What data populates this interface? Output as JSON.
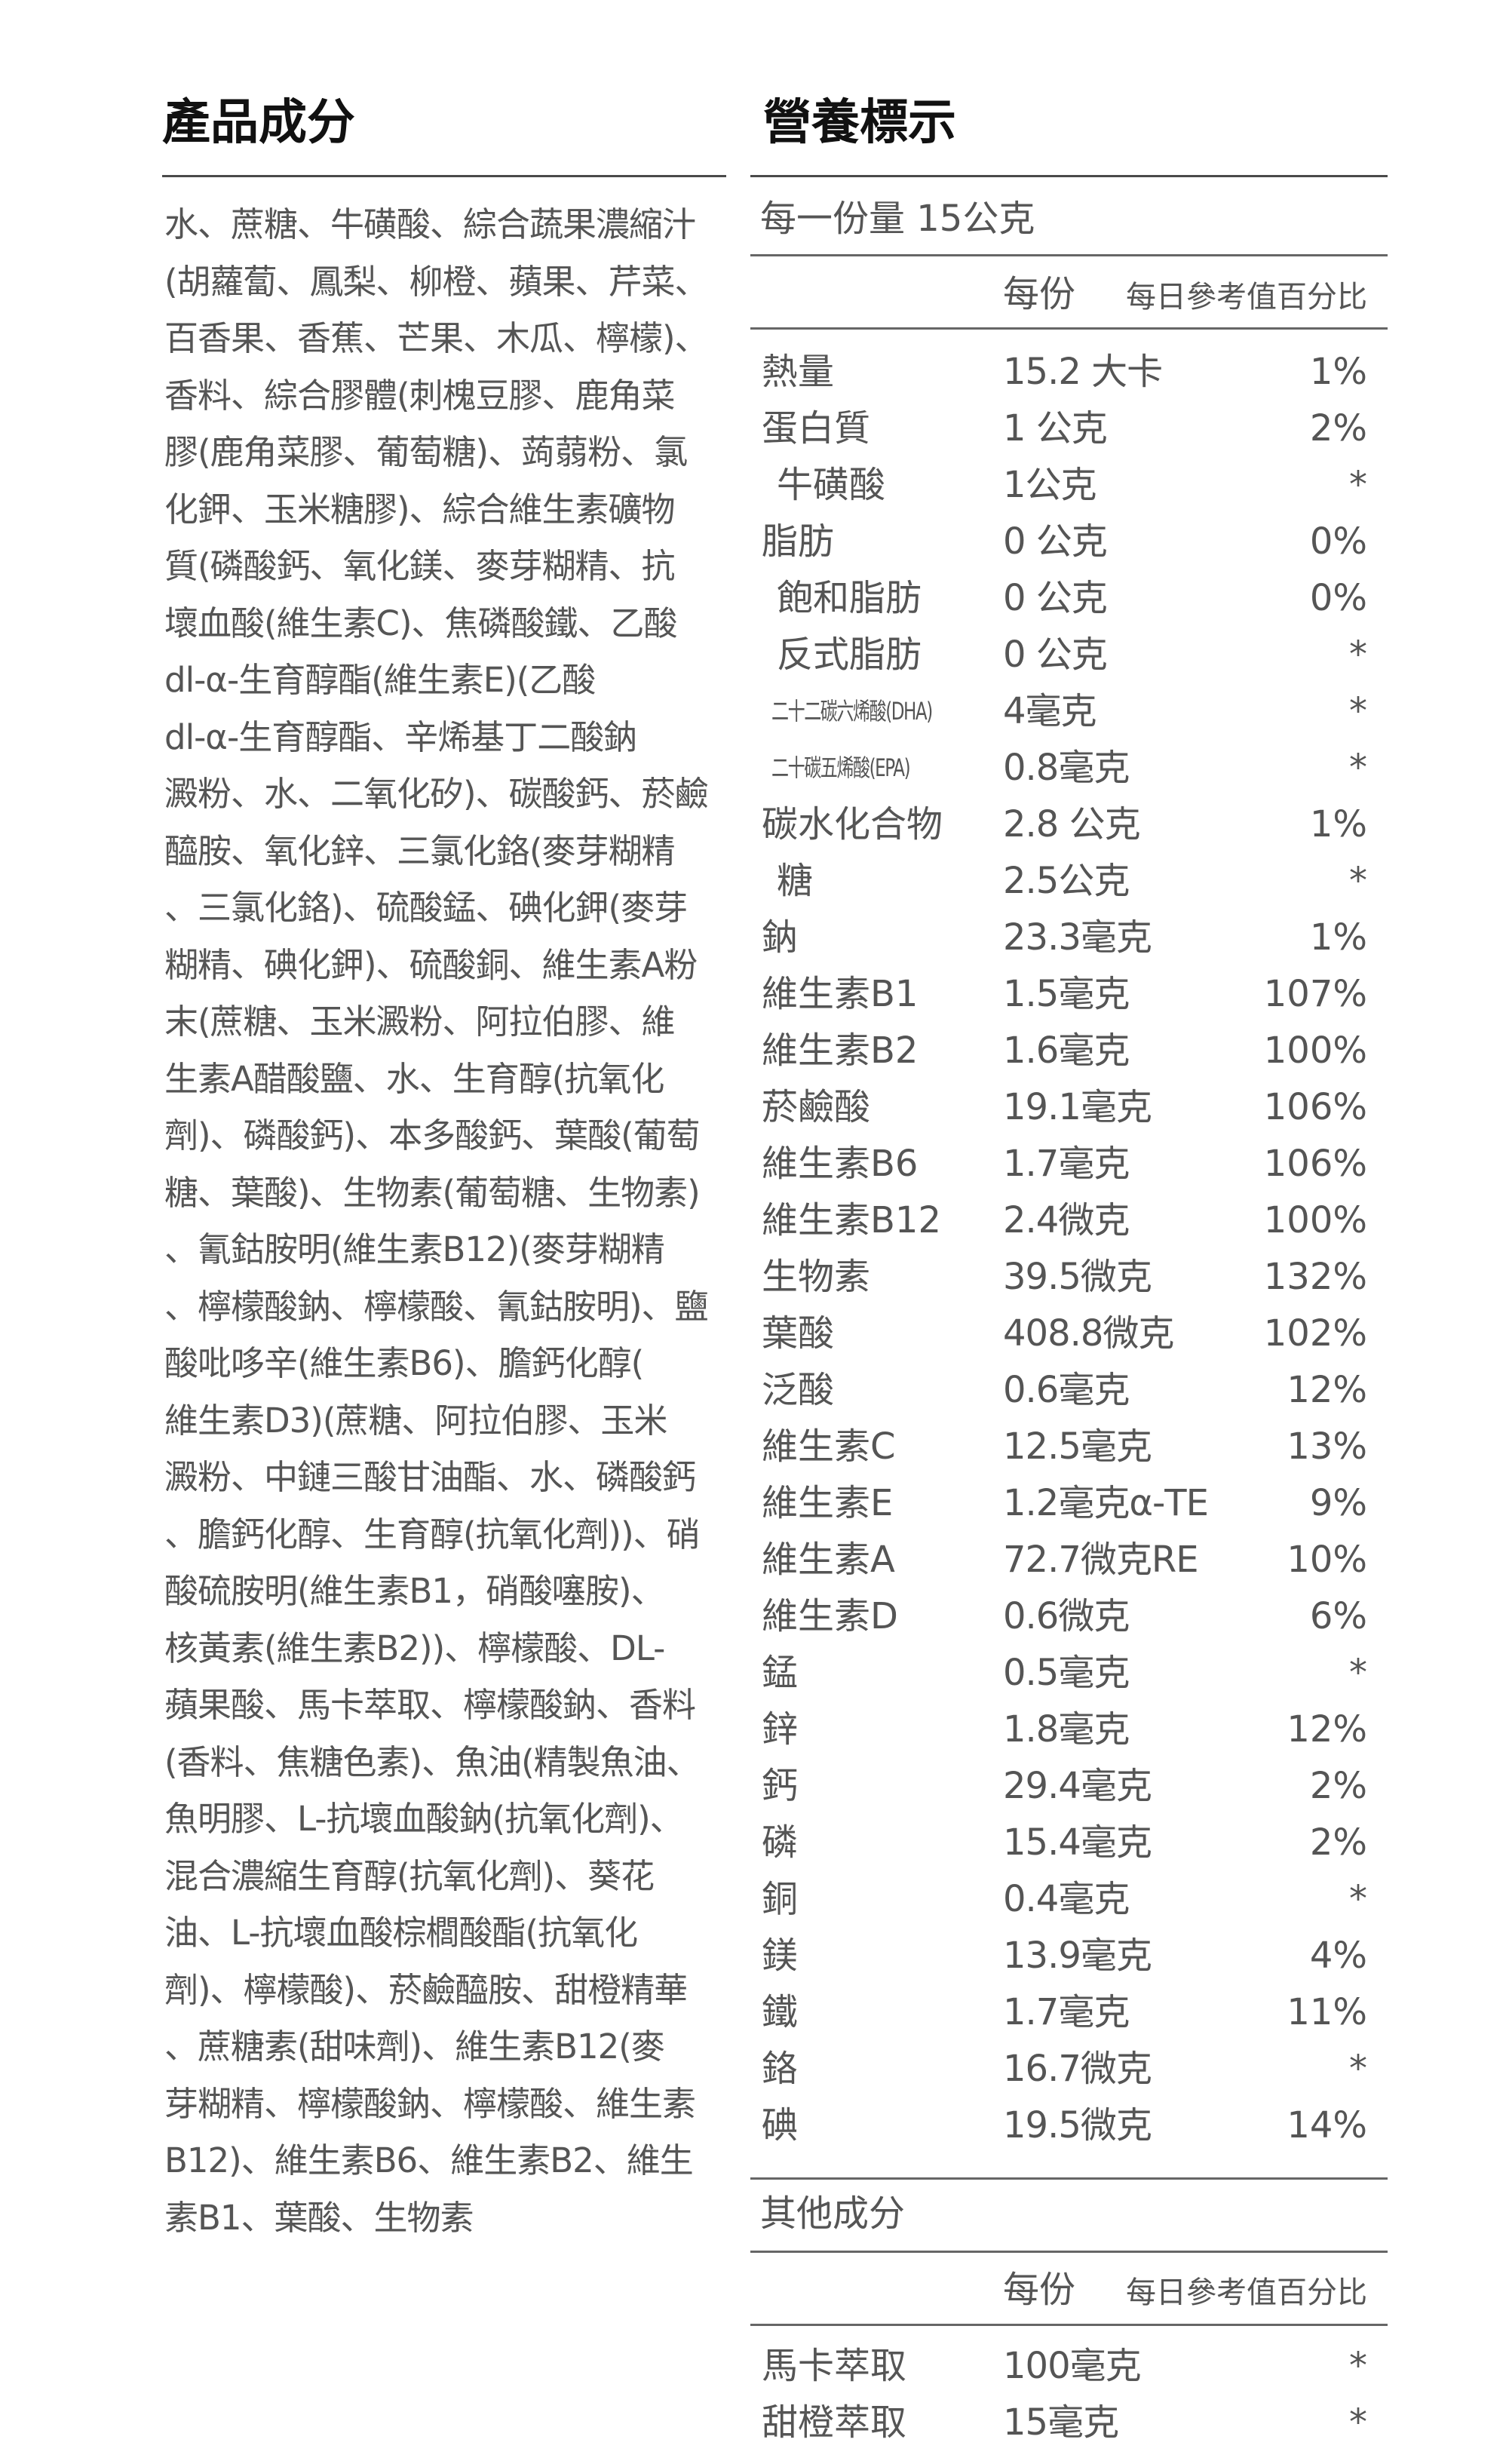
{
  "ingredients": {
    "title": "產品成分",
    "lines": [
      "水、蔗糖、牛磺酸、綜合蔬果濃縮汁",
      "(胡蘿蔔、鳳梨、柳橙、蘋果、芹菜、",
      "百香果、香蕉、芒果、木瓜、檸檬)、",
      "香料、綜合膠體(刺槐豆膠、鹿角菜",
      "膠(鹿角菜膠、葡萄糖)、蒟蒻粉、氯",
      "化鉀、玉米糖膠)、綜合維生素礦物",
      "質(磷酸鈣、氧化鎂、麥芽糊精、抗",
      "壞血酸(維生素C)、焦磷酸鐵、乙酸",
      "dl-α-生育醇酯(維生素E)(乙酸",
      "dl-α-生育醇酯、辛烯基丁二酸鈉",
      "澱粉、水、二氧化矽)、碳酸鈣、菸鹼",
      "醯胺、氧化鋅、三氯化鉻(麥芽糊精",
      "、三氯化鉻)、硫酸錳、碘化鉀(麥芽",
      "糊精、碘化鉀)、硫酸銅、維生素A粉",
      "末(蔗糖、玉米澱粉、阿拉伯膠、維",
      "生素A醋酸鹽、水、生育醇(抗氧化",
      "劑)、磷酸鈣)、本多酸鈣、葉酸(葡萄",
      "糖、葉酸)、生物素(葡萄糖、生物素)",
      "、氰鈷胺明(維生素B12)(麥芽糊精",
      "、檸檬酸鈉、檸檬酸、氰鈷胺明)、鹽",
      "酸吡哆辛(維生素B6)、膽鈣化醇(",
      "維生素D3)(蔗糖、阿拉伯膠、玉米",
      "澱粉、中鏈三酸甘油酯、水、磷酸鈣",
      "、膽鈣化醇、生育醇(抗氧化劑))、硝",
      "酸硫胺明(維生素B1，硝酸噻胺)、",
      "核黃素(維生素B2))、檸檬酸、DL-",
      "蘋果酸、馬卡萃取、檸檬酸鈉、香料",
      "(香料、焦糖色素)、魚油(精製魚油、",
      "魚明膠、L-抗壞血酸鈉(抗氧化劑)、",
      "混合濃縮生育醇(抗氧化劑)、葵花",
      "油、L-抗壞血酸棕櫚酸酯(抗氧化",
      "劑)、檸檬酸)、菸鹼醯胺、甜橙精華",
      "、蔗糖素(甜味劑)、維生素B12(麥",
      "芽糊精、檸檬酸鈉、檸檬酸、維生素",
      "B12)、維生素B6、維生素B2、維生",
      "素B1、葉酸、生物素"
    ]
  },
  "nutrition": {
    "title": "營養標示",
    "serving_size": "每一份量 15公克",
    "col_per_serving": "每份",
    "col_daily_value": "每日參考值百分比",
    "rows": [
      {
        "name": "熱量",
        "value": "15.2 大卡",
        "pct": "1%"
      },
      {
        "name": "蛋白質",
        "value": "1 公克",
        "pct": "2%"
      },
      {
        "name": "牛磺酸",
        "value": "1公克",
        "pct": "*",
        "indent": true
      },
      {
        "name": "脂肪",
        "value": "0 公克",
        "pct": "0%"
      },
      {
        "name": "飽和脂肪",
        "value": "0 公克",
        "pct": "0%",
        "indent": true
      },
      {
        "name": "反式脂肪",
        "value": "0 公克",
        "pct": "*",
        "indent": true
      },
      {
        "name": "二十二碳六烯酸(DHA)",
        "value": "4毫克",
        "pct": "*",
        "small": true
      },
      {
        "name": "二十碳五烯酸(EPA)",
        "value": "0.8毫克",
        "pct": "*",
        "small": true
      },
      {
        "name": "碳水化合物",
        "value": "2.8 公克",
        "pct": "1%"
      },
      {
        "name": "糖",
        "value": "2.5公克",
        "pct": "*",
        "indent": true
      },
      {
        "name": "鈉",
        "value": "23.3毫克",
        "pct": "1%"
      },
      {
        "name": "維生素B1",
        "value": "1.5毫克",
        "pct": "107%"
      },
      {
        "name": "維生素B2",
        "value": "1.6毫克",
        "pct": "100%"
      },
      {
        "name": "菸鹼酸",
        "value": "19.1毫克",
        "pct": "106%"
      },
      {
        "name": "維生素B6",
        "value": "1.7毫克",
        "pct": "106%"
      },
      {
        "name": "維生素B12",
        "value": "2.4微克",
        "pct": "100%"
      },
      {
        "name": "生物素",
        "value": "39.5微克",
        "pct": "132%"
      },
      {
        "name": "葉酸",
        "value": "408.8微克",
        "pct": "102%"
      },
      {
        "name": "泛酸",
        "value": "0.6毫克",
        "pct": "12%"
      },
      {
        "name": "維生素C",
        "value": "12.5毫克",
        "pct": "13%"
      },
      {
        "name": "維生素E",
        "value": "1.2毫克α-TE",
        "pct": "9%"
      },
      {
        "name": "維生素A",
        "value": "72.7微克RE",
        "pct": "10%"
      },
      {
        "name": "維生素D",
        "value": "0.6微克",
        "pct": "6%"
      },
      {
        "name": "錳",
        "value": "0.5毫克",
        "pct": "*"
      },
      {
        "name": "鋅",
        "value": "1.8毫克",
        "pct": "12%"
      },
      {
        "name": "鈣",
        "value": "29.4毫克",
        "pct": "2%"
      },
      {
        "name": "磷",
        "value": "15.4毫克",
        "pct": "2%"
      },
      {
        "name": "銅",
        "value": "0.4毫克",
        "pct": "*"
      },
      {
        "name": "鎂",
        "value": "13.9毫克",
        "pct": "4%"
      },
      {
        "name": "鐵",
        "value": "1.7毫克",
        "pct": "11%"
      },
      {
        "name": "鉻",
        "value": "16.7微克",
        "pct": "*"
      },
      {
        "name": "碘",
        "value": "19.5微克",
        "pct": "14%"
      }
    ],
    "other": {
      "title": "其他成分",
      "col_per_serving": "每份",
      "col_daily_value": "每日參考值百分比",
      "rows": [
        {
          "name": "馬卡萃取",
          "value": "100毫克",
          "pct": "*"
        },
        {
          "name": "甜橙萃取",
          "value": "15毫克",
          "pct": "*"
        }
      ]
    }
  }
}
